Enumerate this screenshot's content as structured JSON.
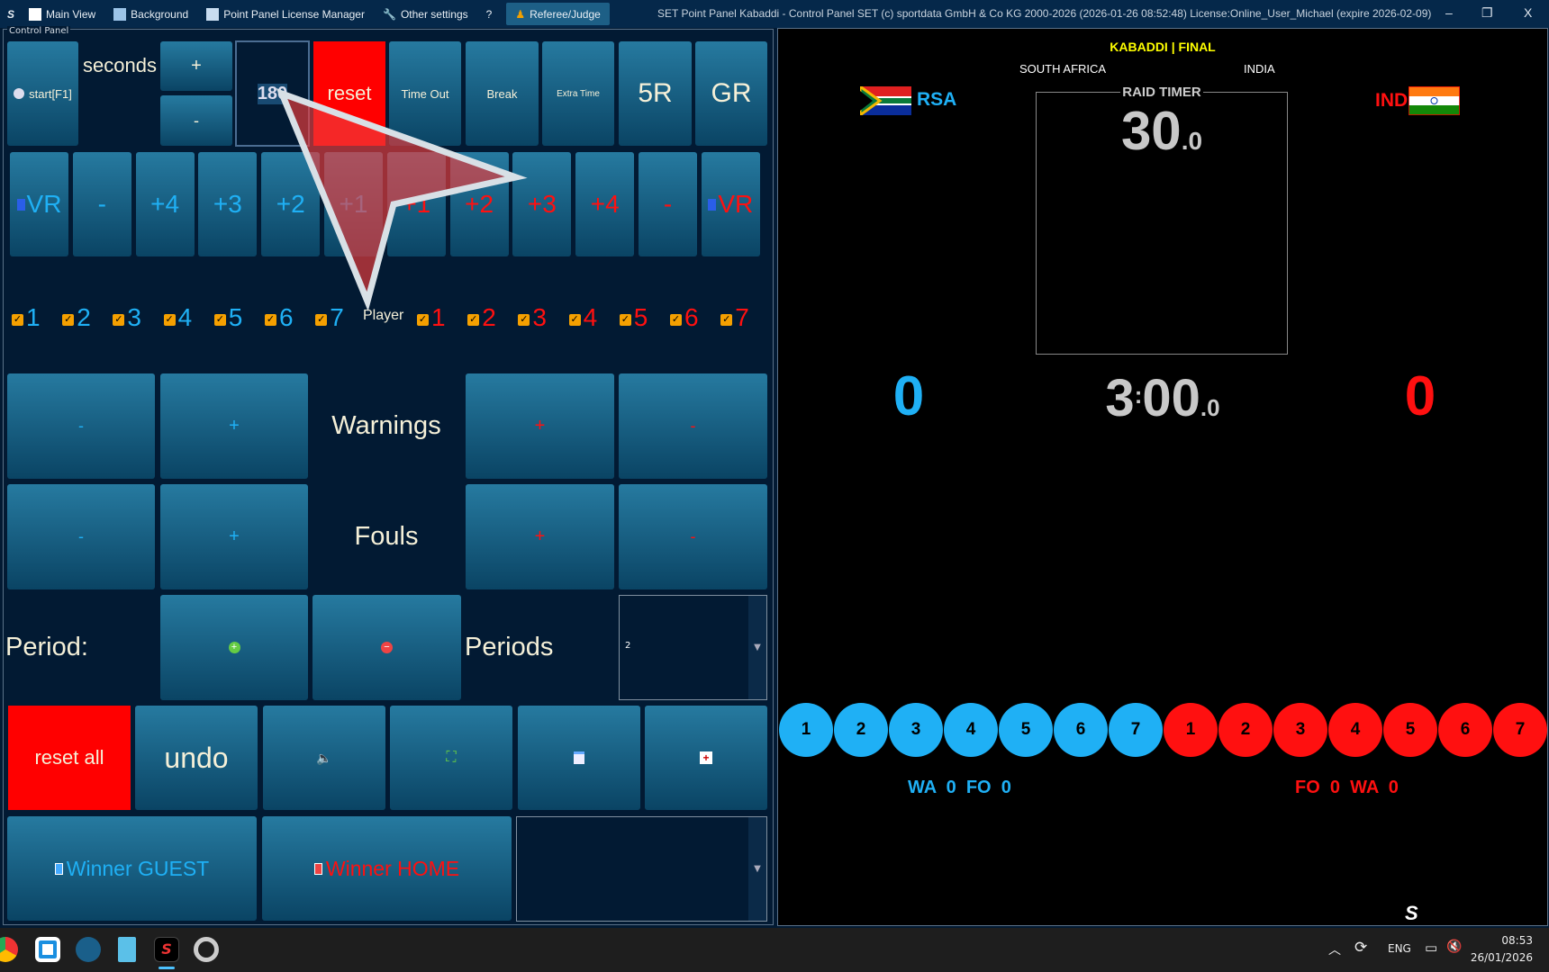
{
  "menu": {
    "items": [
      "Main View",
      "Background",
      "Point Panel License Manager",
      "Other settings",
      "?",
      "Referee/Judge"
    ],
    "title": "SET Point Panel Kabaddi - Control Panel SET (c) sportdata GmbH & Co KG 2000-2026 (2026-01-26 08:52:48) License:Online_User_Michael (expire 2026-02-09)"
  },
  "window": {
    "minimize": "–",
    "restore": "❐",
    "close": "X"
  },
  "panel": {
    "label": "Control Panel",
    "start": "start[F1]",
    "seconds": "seconds",
    "plus": "+",
    "minus": "-",
    "seconds_value": "180",
    "reset": "reset",
    "timeout": "Time Out",
    "break": "Break",
    "extra": "Extra Time",
    "r5": "5R",
    "gr": "GR",
    "points": [
      "VR",
      "-",
      "+4",
      "+3",
      "+2",
      "+1",
      "+1",
      "+2",
      "+3",
      "+4",
      "-",
      "VR"
    ],
    "player_label": "Player",
    "players": [
      "1",
      "2",
      "3",
      "4",
      "5",
      "6",
      "7"
    ],
    "warnings": "Warnings",
    "fouls": "Fouls",
    "period": "Period:",
    "periods": "Periods",
    "periods_value": "2",
    "reset_all": "reset all",
    "undo": "undo",
    "winner_guest": "Winner GUEST",
    "winner_home": "Winner HOME"
  },
  "board": {
    "title": "KABADDI | FINAL",
    "home_name": "SOUTH AFRICA",
    "guest_name": "INDIA",
    "home_code": "RSA",
    "guest_code": "IND",
    "raid_label": "RAID TIMER",
    "raid_main": "30",
    "raid_dec": ".0",
    "home_score": "0",
    "guest_score": "0",
    "clock_min": "3",
    "clock_sep": ":",
    "clock_sec": "00",
    "clock_dec": ".0",
    "home_stats": "WA  0  FO  0",
    "guest_stats": "FO  0  WA  0",
    "home_color": "#1fb0f5",
    "guest_color": "#ff1010",
    "title_color": "#ffff00"
  },
  "tray": {
    "lang": "ENG",
    "time": "08:53",
    "date": "26/01/2026"
  }
}
